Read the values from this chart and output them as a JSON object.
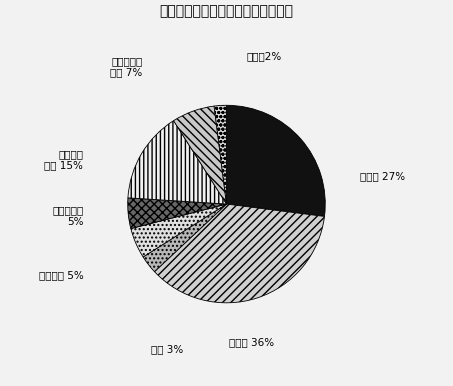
{
  "title": "図２：廃用雌豚における卵巣の状態",
  "slices": [
    {
      "label": "卵胞期 27%",
      "value": 27,
      "hatch": "",
      "color": "#111111"
    },
    {
      "label": "黄体期 36%",
      "value": 36,
      "hatch": "////",
      "color": "#d0d0d0"
    },
    {
      "label": "妊娠 3%",
      "value": 3,
      "hatch": "....",
      "color": "#b8b8b8"
    },
    {
      "label": "離乳直後 5%",
      "value": 5,
      "hatch": "....",
      "color": "#e0e0e0"
    },
    {
      "label": "単胞性嚢胞\n5%",
      "value": 5,
      "hatch": "xxxx",
      "color": "#666666"
    },
    {
      "label": "卵胞発育\n障害 15%",
      "value": 15,
      "hatch": "||||",
      "color": "#f0f0f0"
    },
    {
      "label": "多胞性大型\n嚢胞 7%",
      "value": 7,
      "hatch": "\\\\\\\\",
      "color": "#c8c8c8"
    },
    {
      "label": "その他2%",
      "value": 2,
      "hatch": "oooo",
      "color": "#d8d8d8"
    }
  ],
  "label_positions": [
    [
      1.35,
      0.28,
      "left",
      "center",
      "卵胞期 27%"
    ],
    [
      0.25,
      -1.35,
      "center",
      "top",
      "黄体期 36%"
    ],
    [
      -0.6,
      -1.42,
      "center",
      "top",
      "妊娠 3%"
    ],
    [
      -1.45,
      -0.72,
      "right",
      "center",
      "離乳直後 5%"
    ],
    [
      -1.45,
      -0.12,
      "right",
      "center",
      "単胞性嚢胞\n5%"
    ],
    [
      -1.45,
      0.45,
      "right",
      "center",
      "卵胞発育\n障害 15%"
    ],
    [
      -0.85,
      1.28,
      "right",
      "bottom",
      "多胞性大型\n嚢胞 7%"
    ],
    [
      0.2,
      1.45,
      "left",
      "bottom",
      "その他2%"
    ]
  ],
  "start_angle": 90,
  "background_color": "#f2f2f2",
  "title_fontsize": 10,
  "label_fontsize": 7.5
}
